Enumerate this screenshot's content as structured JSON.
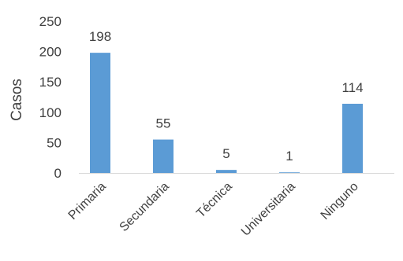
{
  "chart_data": {
    "type": "bar",
    "categories": [
      "Primaria",
      "Secundaria",
      "Técnica",
      "Universitaria",
      "Ninguno"
    ],
    "values": [
      198,
      55,
      5,
      1,
      114
    ],
    "data_labels": [
      "198",
      "55",
      "5",
      "1",
      "114"
    ],
    "ylabel": "Casos",
    "xlabel": "",
    "ylim": [
      0,
      250
    ],
    "yticks": [
      "0",
      "50",
      "100",
      "150",
      "200",
      "250"
    ],
    "grid": false,
    "legend": "none",
    "bar_color": "#5B9BD5"
  }
}
